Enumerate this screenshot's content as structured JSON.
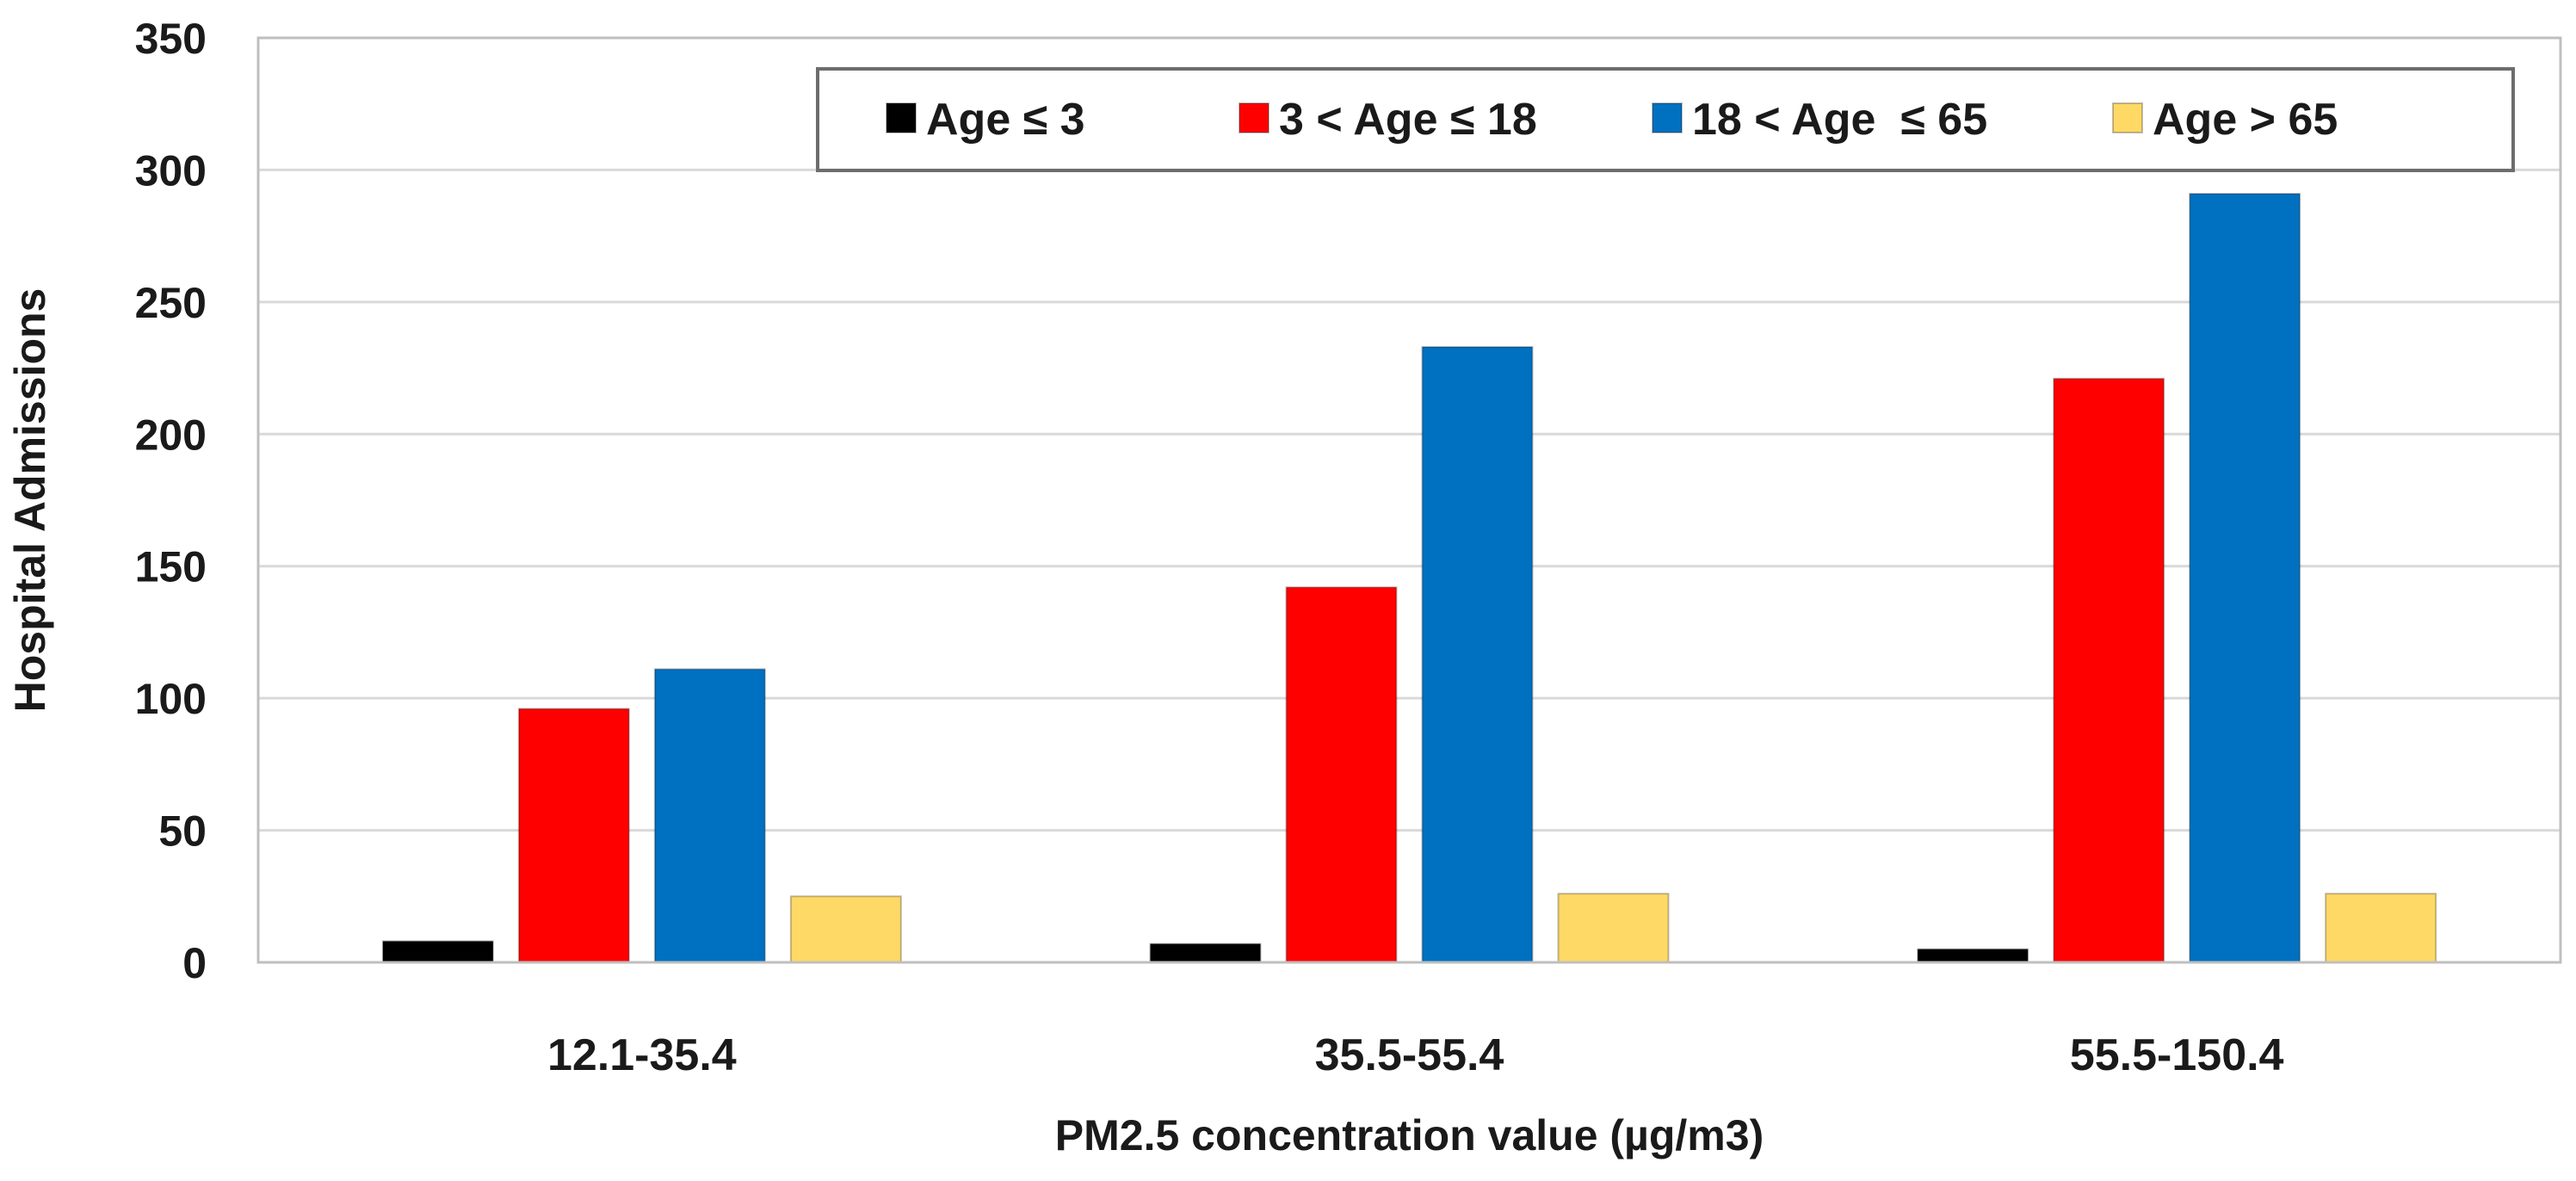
{
  "chart_data": {
    "type": "bar",
    "title": "",
    "xlabel": "PM2.5 concentration value (µg/m3)",
    "ylabel": "Hospital Admissions",
    "ylim": [
      0,
      350
    ],
    "yticks": [
      0,
      50,
      100,
      150,
      200,
      250,
      300,
      350
    ],
    "grid": true,
    "legend_position": "top-right",
    "categories": [
      "12.1-35.4",
      "35.5-55.4",
      "55.5-150.4"
    ],
    "series": [
      {
        "name": "Age ≤ 3",
        "color": "#000000",
        "values": [
          8,
          7,
          5
        ]
      },
      {
        "name": "3 < Age ≤ 18",
        "color": "#ff0000",
        "values": [
          96,
          142,
          221
        ]
      },
      {
        "name": "18 < Age  ≤ 65",
        "color": "#0070c0",
        "values": [
          111,
          233,
          291
        ]
      },
      {
        "name": "Age > 65",
        "color": "#ffd966",
        "values": [
          25,
          26,
          26
        ]
      }
    ]
  }
}
